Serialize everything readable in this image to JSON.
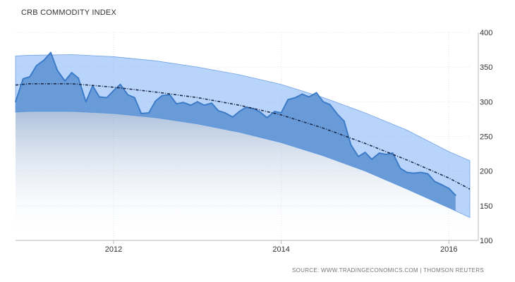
{
  "chart_data": {
    "type": "area",
    "title": "CRB COMMODITY INDEX",
    "source": "SOURCE: WWW.TRADINGECONOMICS.COM | THOMSON REUTERS",
    "xlabel": "",
    "ylabel": "",
    "xlim": [
      2010.83,
      2016.25
    ],
    "ylim": [
      100,
      400
    ],
    "x_ticks": [
      2012,
      2014,
      2016
    ],
    "x_tick_labels": [
      "2012",
      "2014",
      "2016"
    ],
    "y_ticks": [
      100,
      150,
      200,
      250,
      300,
      350,
      400
    ],
    "y_tick_labels": [
      "100",
      "150",
      "200",
      "250",
      "300",
      "350",
      "400"
    ],
    "grid": true,
    "series": [
      {
        "name": "CRB Commodity Index",
        "x": [
          2010.83,
          2010.92,
          2011.0,
          2011.08,
          2011.17,
          2011.25,
          2011.33,
          2011.42,
          2011.5,
          2011.58,
          2011.67,
          2011.75,
          2011.83,
          2011.92,
          2012.0,
          2012.08,
          2012.17,
          2012.25,
          2012.33,
          2012.42,
          2012.5,
          2012.58,
          2012.67,
          2012.75,
          2012.83,
          2012.92,
          2013.0,
          2013.08,
          2013.17,
          2013.25,
          2013.33,
          2013.42,
          2013.5,
          2013.58,
          2013.67,
          2013.75,
          2013.83,
          2013.92,
          2014.0,
          2014.08,
          2014.17,
          2014.25,
          2014.33,
          2014.42,
          2014.5,
          2014.58,
          2014.67,
          2014.75,
          2014.83,
          2014.92,
          2015.0,
          2015.08,
          2015.17,
          2015.25,
          2015.33,
          2015.42,
          2015.5,
          2015.58,
          2015.67,
          2015.75,
          2015.83,
          2015.92,
          2016.0,
          2016.08
        ],
        "values": [
          300,
          333,
          336,
          352,
          360,
          371,
          345,
          330,
          342,
          334,
          300,
          323,
          307,
          306,
          316,
          325,
          310,
          306,
          283,
          284,
          301,
          309,
          310,
          297,
          299,
          295,
          300,
          295,
          298,
          287,
          284,
          278,
          286,
          292,
          290,
          285,
          277,
          286,
          284,
          303,
          306,
          311,
          307,
          313,
          300,
          296,
          282,
          272,
          238,
          221,
          227,
          217,
          226,
          224,
          226,
          204,
          198,
          197,
          198,
          196,
          185,
          180,
          175,
          165
        ]
      },
      {
        "name": "Trend",
        "style": "dash-dot",
        "x": [
          2010.83,
          2011.0,
          2011.5,
          2012.0,
          2012.5,
          2013.0,
          2013.5,
          2014.0,
          2014.5,
          2015.0,
          2015.5,
          2016.0,
          2016.25
        ],
        "values": [
          324,
          326,
          326,
          321,
          314,
          306,
          295,
          281,
          262,
          240,
          216,
          190,
          174
        ]
      },
      {
        "name": "Upper band",
        "x": [
          2010.83,
          2011.0,
          2011.5,
          2012.0,
          2012.5,
          2013.0,
          2013.5,
          2014.0,
          2014.5,
          2015.0,
          2015.5,
          2016.0,
          2016.25
        ],
        "values": [
          366,
          367,
          368,
          365,
          359,
          350,
          339,
          325,
          306,
          284,
          259,
          228,
          215
        ]
      },
      {
        "name": "Lower band",
        "x": [
          2010.83,
          2011.0,
          2011.5,
          2012.0,
          2012.5,
          2013.0,
          2013.5,
          2014.0,
          2014.5,
          2015.0,
          2015.5,
          2016.0,
          2016.25
        ],
        "values": [
          285,
          286,
          286,
          283,
          277,
          268,
          256,
          241,
          222,
          200,
          174,
          147,
          133
        ]
      }
    ]
  }
}
